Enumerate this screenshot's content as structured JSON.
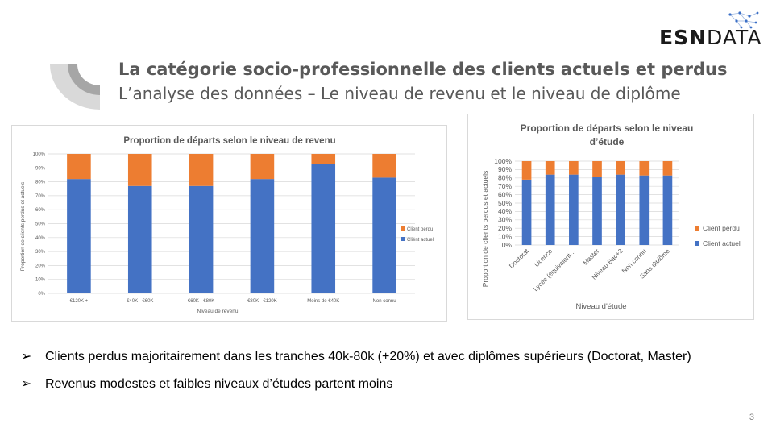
{
  "header": {
    "title": "La catégorie socio-professionnelle des clients actuels et perdus",
    "subtitle": "L’analyse des données – Le niveau de revenu et le niveau de diplôme"
  },
  "logo": {
    "bold": "ESN",
    "light": "DATA"
  },
  "colors": {
    "client_actuel": "#4472C4",
    "client_perdu": "#ED7D31",
    "text_grey": "#595959"
  },
  "chart_data": [
    {
      "type": "bar",
      "stacked": true,
      "title": "Proportion de départs selon le niveau de revenu",
      "xlabel": "Niveau de revenu",
      "ylabel": "Proportion de clients perdus et actuels",
      "categories": [
        "€120K +",
        "€40K - €60K",
        "€60K - €80K",
        "€80K - €120K",
        "Moins de €40K",
        "Non connu"
      ],
      "yticks": [
        "0%",
        "10%",
        "20%",
        "30%",
        "40%",
        "50%",
        "60%",
        "70%",
        "80%",
        "90%",
        "100%"
      ],
      "ylim": [
        0,
        100
      ],
      "legend_position": "right",
      "series": [
        {
          "name": "Client actuel",
          "values": [
            82,
            77,
            77,
            82,
            93,
            83
          ]
        },
        {
          "name": "Client perdu",
          "values": [
            18,
            23,
            23,
            18,
            7,
            17
          ]
        }
      ]
    },
    {
      "type": "bar",
      "stacked": true,
      "title": "Proportion de départs selon le niveau d’étude",
      "xlabel": "Niveau d'étude",
      "ylabel": "Proportion de clients perdus et actuels",
      "categories": [
        "Doctorat",
        "Licence",
        "Lycée (équivalent…",
        "Master",
        "Niveau Bac+2",
        "Non connu",
        "Sans diplôme"
      ],
      "yticks": [
        "0%",
        "10%",
        "20%",
        "30%",
        "40%",
        "50%",
        "60%",
        "70%",
        "80%",
        "90%",
        "100%"
      ],
      "ylim": [
        0,
        100
      ],
      "legend_position": "right",
      "series": [
        {
          "name": "Client actuel",
          "values": [
            78,
            84,
            84,
            81,
            84,
            83,
            83
          ]
        },
        {
          "name": "Client perdu",
          "values": [
            22,
            16,
            16,
            19,
            16,
            17,
            17
          ]
        }
      ]
    }
  ],
  "bullets": [
    "Clients perdus majoritairement dans les tranches 40k-80k (+20%) et avec diplômes supérieurs (Doctorat, Master)",
    "Revenus modestes et faibles niveaux d’études partent moins"
  ],
  "bullet_marker": "➢",
  "page_number": "3"
}
